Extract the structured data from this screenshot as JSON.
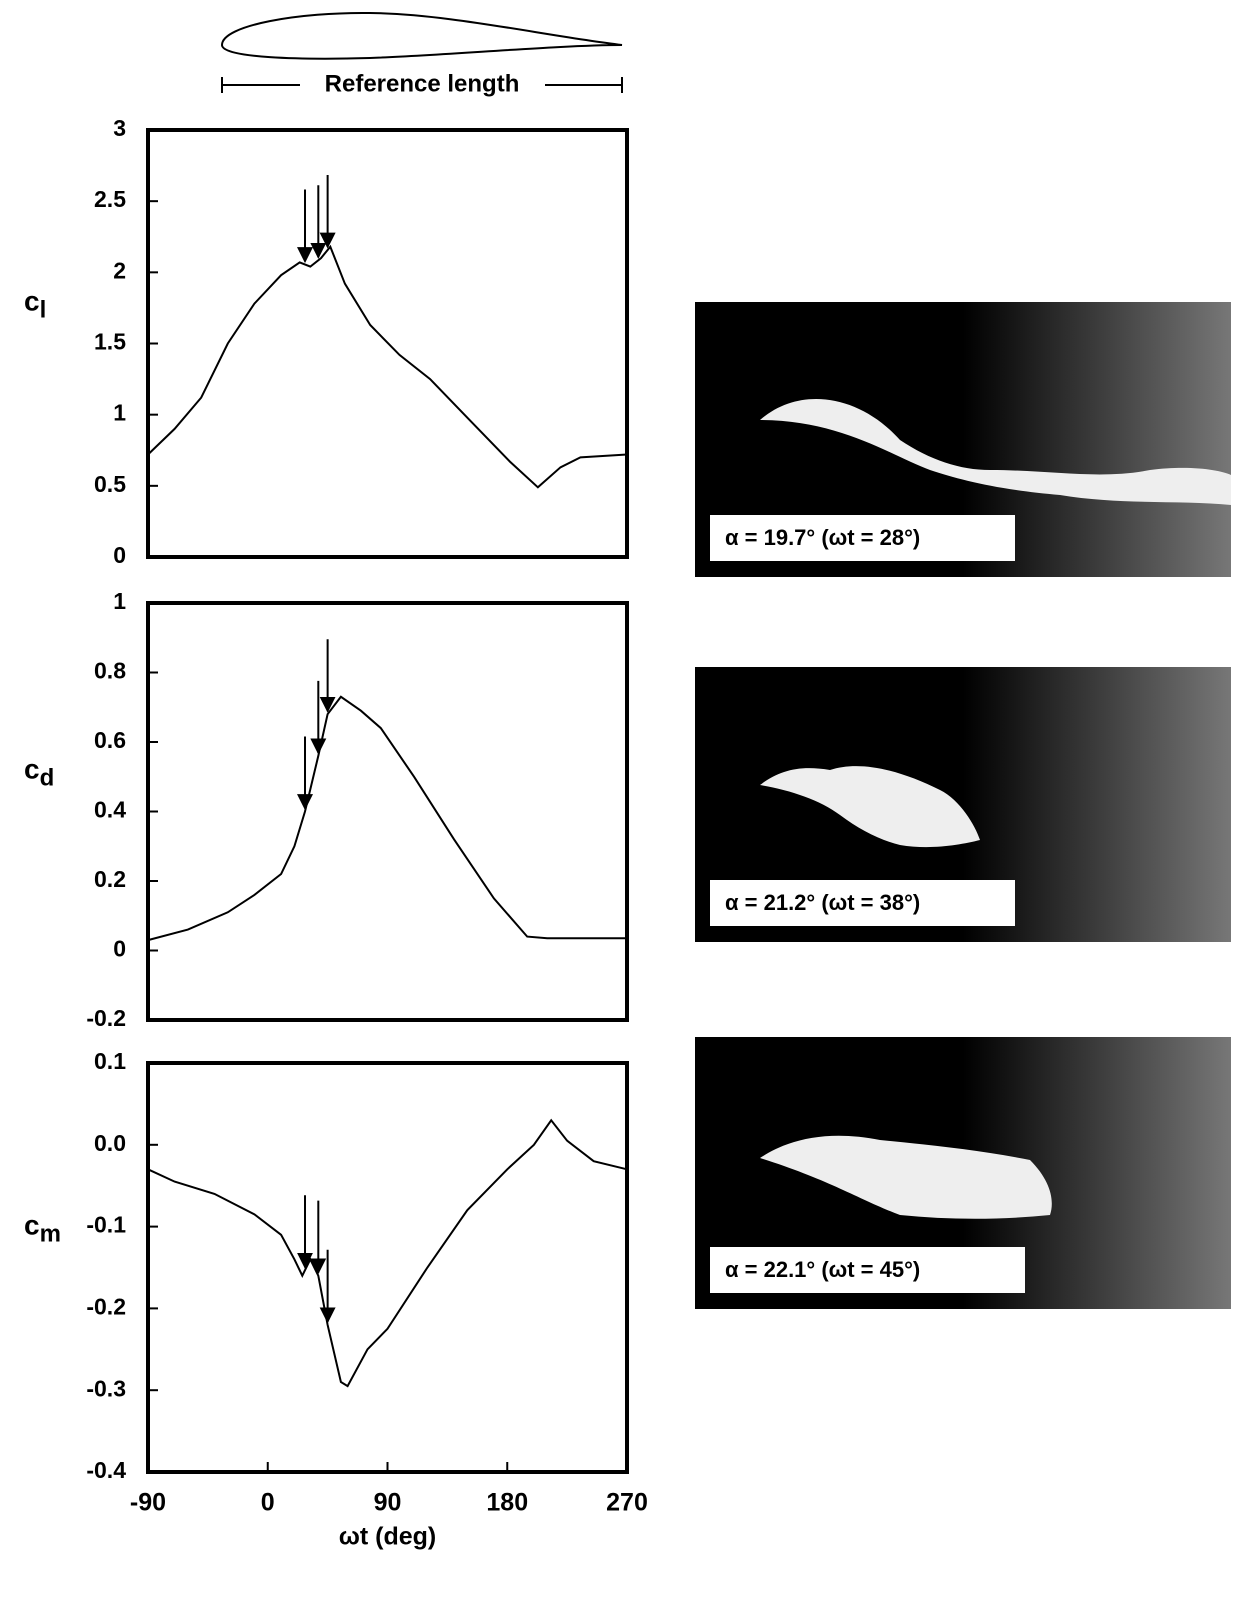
{
  "airfoil_label": "Reference length",
  "chart_data": [
    {
      "type": "line",
      "y_label": "cl",
      "x": [
        -90,
        -70,
        -50,
        -30,
        -10,
        10,
        24,
        32,
        40,
        47,
        58,
        77,
        99,
        122,
        152,
        182,
        203,
        220,
        235,
        270
      ],
      "series": [
        {
          "color": "#000000",
          "values": [
            0.72,
            0.9,
            1.12,
            1.5,
            1.78,
            1.98,
            2.07,
            2.04,
            2.1,
            2.18,
            1.92,
            1.63,
            1.42,
            1.25,
            0.96,
            0.67,
            0.49,
            0.63,
            0.7,
            0.72
          ]
        }
      ],
      "xlim": [
        -90,
        270
      ],
      "ylim": [
        0,
        3
      ],
      "yticks": [
        0,
        0.5,
        1,
        1.5,
        2,
        2.5,
        3
      ],
      "arrows_x": [
        28,
        38,
        45
      ]
    },
    {
      "type": "line",
      "y_label": "cd",
      "x": [
        -90,
        -60,
        -30,
        -10,
        10,
        20,
        28,
        38,
        45,
        55,
        70,
        85,
        110,
        140,
        170,
        195,
        210,
        270
      ],
      "series": [
        {
          "color": "#000000",
          "values": [
            0.03,
            0.06,
            0.11,
            0.16,
            0.22,
            0.3,
            0.4,
            0.56,
            0.68,
            0.73,
            0.69,
            0.64,
            0.5,
            0.32,
            0.15,
            0.04,
            0.035,
            0.035
          ]
        }
      ],
      "xlim": [
        -90,
        270
      ],
      "ylim": [
        -0.2,
        1
      ],
      "yticks": [
        -0.2,
        0,
        0.2,
        0.4,
        0.6,
        0.8,
        1
      ],
      "arrows_x": [
        28,
        38,
        45
      ]
    },
    {
      "type": "line",
      "y_label": "cm",
      "x_label": "ωt (deg)",
      "x": [
        -90,
        -70,
        -40,
        -10,
        10,
        20,
        26,
        32,
        38,
        45,
        55,
        60,
        75,
        90,
        120,
        150,
        180,
        200,
        213,
        225,
        245,
        270
      ],
      "series": [
        {
          "color": "#000000",
          "values": [
            -0.03,
            -0.045,
            -0.06,
            -0.085,
            -0.11,
            -0.14,
            -0.16,
            -0.14,
            -0.16,
            -0.22,
            -0.29,
            -0.295,
            -0.25,
            -0.225,
            -0.15,
            -0.08,
            -0.03,
            0,
            0.03,
            0.005,
            -0.02,
            -0.03
          ]
        }
      ],
      "xlim": [
        -90,
        270
      ],
      "xticks": [
        -90,
        0,
        90,
        180,
        270
      ],
      "ylim": [
        -0.4,
        0.1
      ],
      "yticks": [
        -0.4,
        -0.3,
        -0.2,
        -0.1,
        {
          "value": 0,
          "label": "0.0"
        },
        0.1
      ],
      "arrows_x": [
        28,
        38,
        45
      ]
    }
  ],
  "photos": [
    {
      "caption": "α = 19.7°  (ωt = 28°)"
    },
    {
      "caption": "α = 21.2°  (ωt = 38°)"
    },
    {
      "caption": "α = 22.1°  (ωt = 45°)"
    }
  ]
}
